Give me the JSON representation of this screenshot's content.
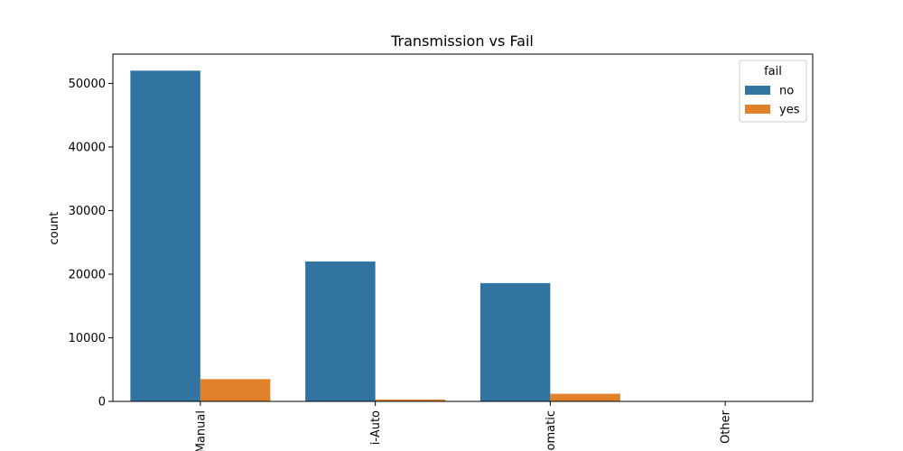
{
  "chart_data": {
    "type": "bar",
    "title": "Transmission vs Fail",
    "xlabel": "",
    "ylabel": "count",
    "categories": [
      "Manual",
      "Semi-Auto",
      "Automatic",
      "Other"
    ],
    "visible_category_labels": [
      "Manual",
      "i-Auto",
      "omatic",
      "Other"
    ],
    "series": [
      {
        "name": "no",
        "values": [
          52000,
          22000,
          18600,
          0
        ],
        "color": "#3274a1"
      },
      {
        "name": "yes",
        "values": [
          3500,
          300,
          1200,
          0
        ],
        "color": "#e1812c"
      }
    ],
    "ylim": [
      0,
      54600
    ],
    "yticks": [
      0,
      10000,
      20000,
      30000,
      40000,
      50000
    ],
    "grid": false,
    "legend": {
      "title": "fail",
      "placement": "top-right"
    }
  }
}
